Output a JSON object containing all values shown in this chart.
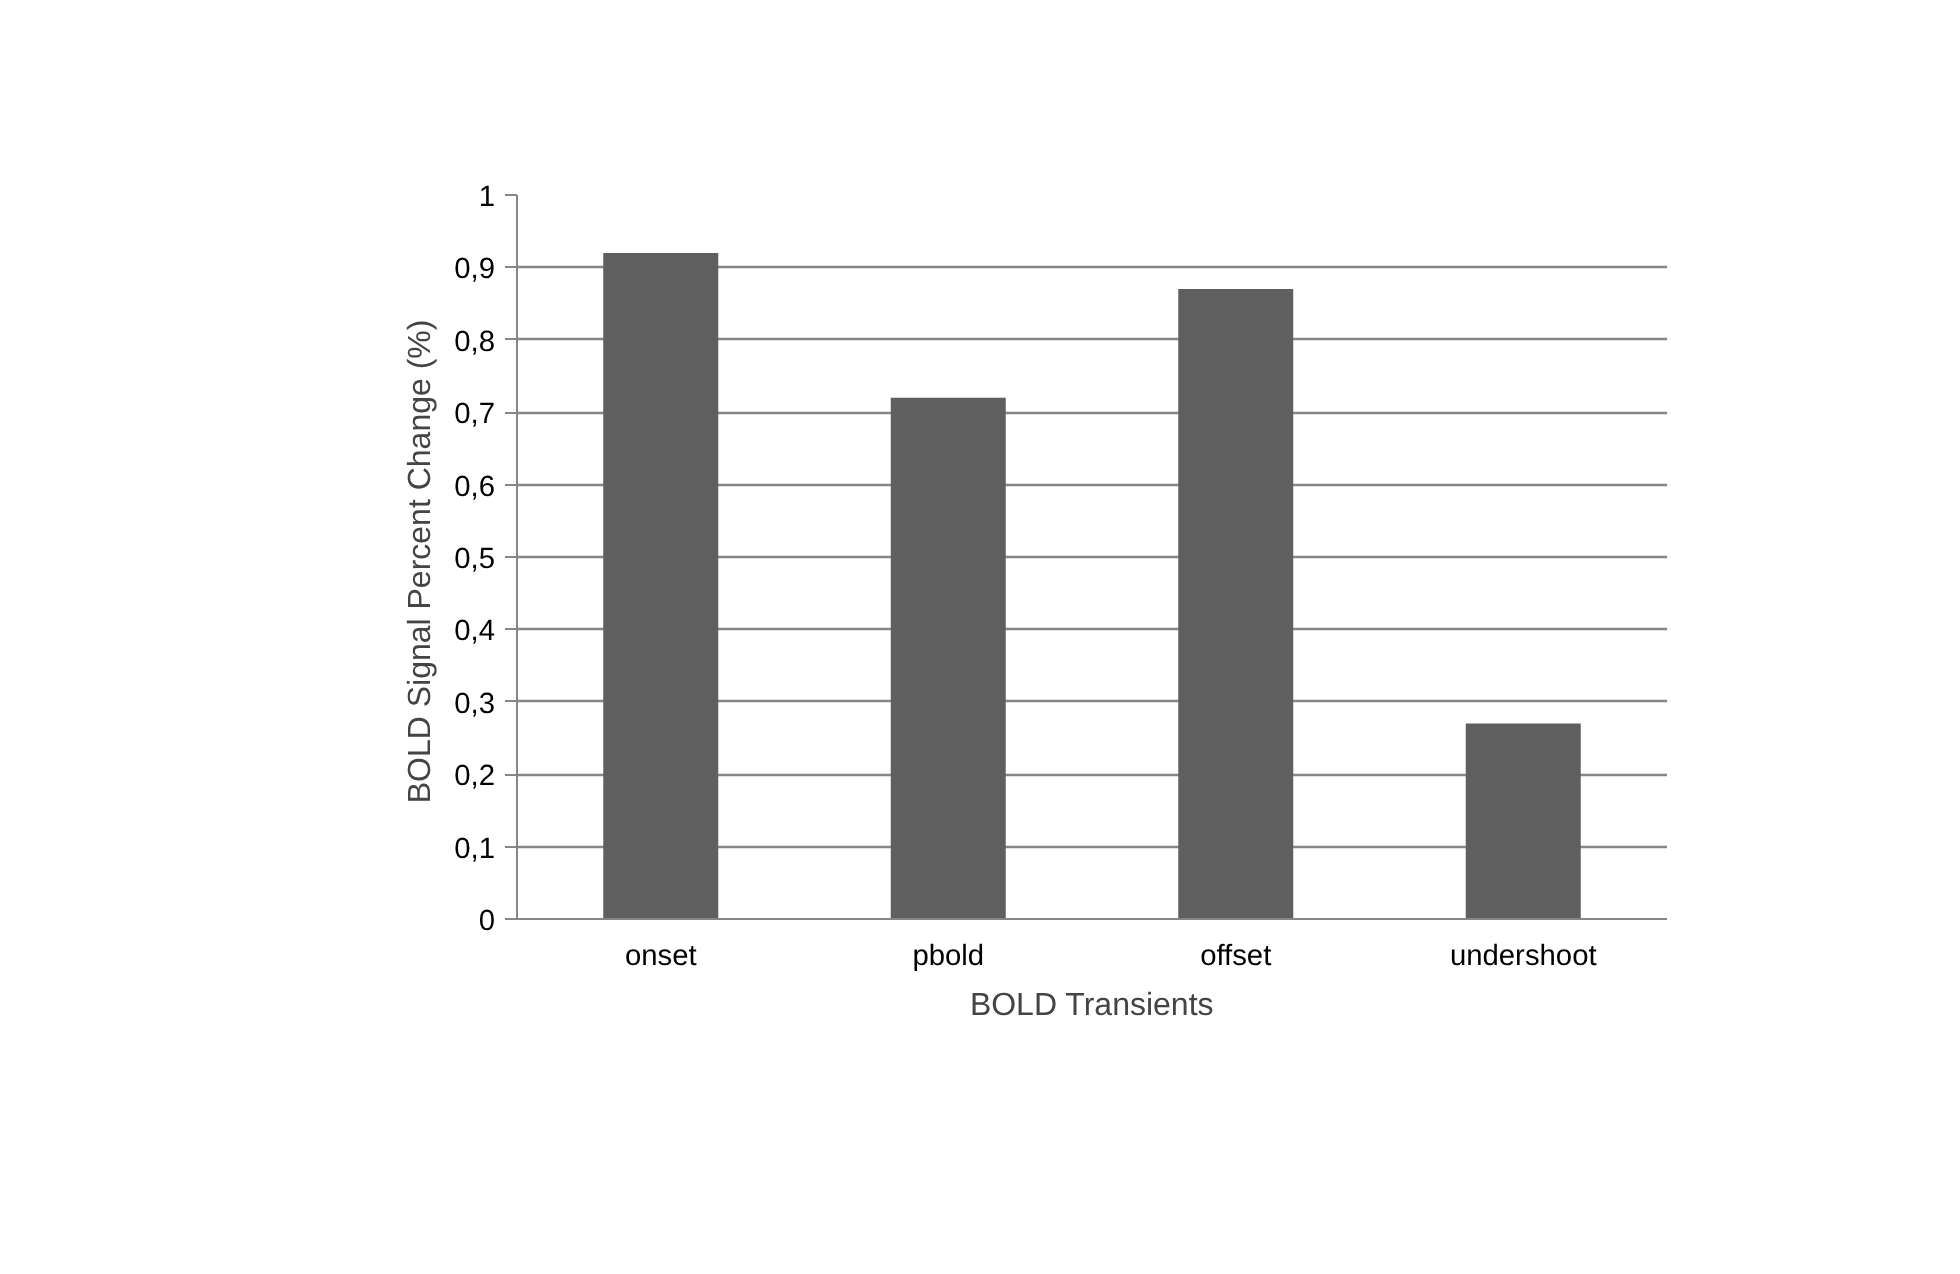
{
  "chart_data": {
    "type": "bar",
    "xlabel": "BOLD Transients",
    "ylabel": "BOLD Signal Percent Change  (%)",
    "categories": [
      "onset",
      "pbold",
      "offset",
      "undershoot"
    ],
    "values": [
      0.92,
      0.72,
      0.87,
      0.27
    ],
    "color": "#5f5f5f",
    "ylim": [
      0,
      1
    ],
    "yticks": [
      0,
      {
        "value": 0.1,
        "label": "0,1"
      },
      {
        "value": 0.2,
        "label": "0,2"
      },
      {
        "value": 0.3,
        "label": "0,3"
      },
      {
        "value": 0.4,
        "label": "0,4"
      },
      {
        "value": 0.5,
        "label": "0,5"
      },
      {
        "value": 0.6,
        "label": "0,6"
      },
      {
        "value": 0.7,
        "label": "0,7"
      },
      {
        "value": 0.8,
        "label": "0,8"
      },
      {
        "value": 0.9,
        "label": "0,9"
      },
      1
    ],
    "grid": "y"
  }
}
